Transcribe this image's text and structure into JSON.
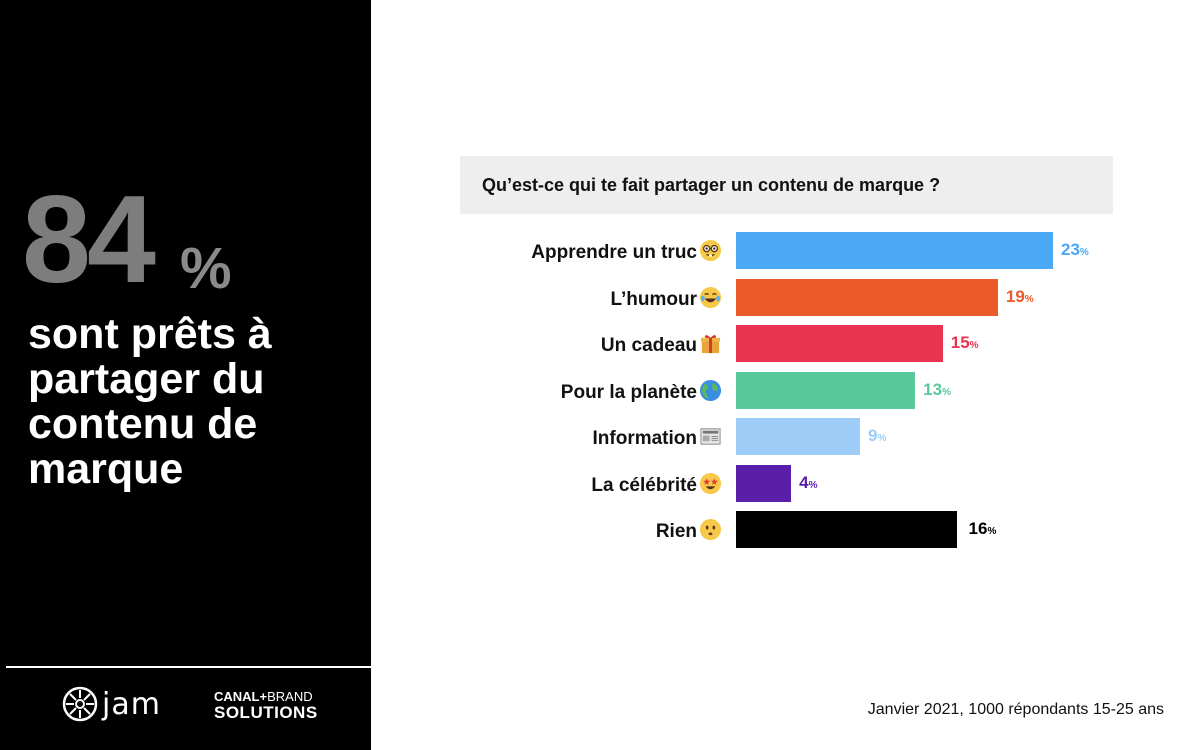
{
  "highlight": {
    "number": "84",
    "percent": "%",
    "text": "sont prêts à partager du contenu de marque",
    "number_color": "#7d7d7d"
  },
  "logos": {
    "jam": "jam",
    "canal_line1_main": "CANAL+",
    "canal_line1_brand": "BRAND",
    "canal_line2": "SOLUTIONS"
  },
  "chart_data": {
    "type": "bar",
    "orientation": "horizontal",
    "title": "Qu’est-ce qui te fait partager un contenu de marque ?",
    "unit": "%",
    "xlim": [
      0,
      23
    ],
    "grid": false,
    "categories": [
      "Apprendre un truc",
      "L’humour",
      "Un cadeau",
      "Pour la planète",
      "Information",
      "La célébrité",
      "Rien"
    ],
    "emojis": [
      "nerd-face",
      "tears-of-joy",
      "gift",
      "globe",
      "newspaper",
      "star-struck",
      "neutral-face"
    ],
    "values": [
      23,
      19,
      15,
      13,
      9,
      4,
      16
    ],
    "colors": [
      "#4aa8f5",
      "#eb5a2a",
      "#ea3350",
      "#59c89a",
      "#9dcdf6",
      "#5a1fa8",
      "#000000"
    ],
    "value_label_colors": [
      "#4aa8f5",
      "#eb5a2a",
      "#ea3350",
      "#59c89a",
      "#9dcdf6",
      "#5a1fa8",
      "#000000"
    ]
  },
  "footnote": "Janvier 2021, 1000 répondants 15-25 ans"
}
